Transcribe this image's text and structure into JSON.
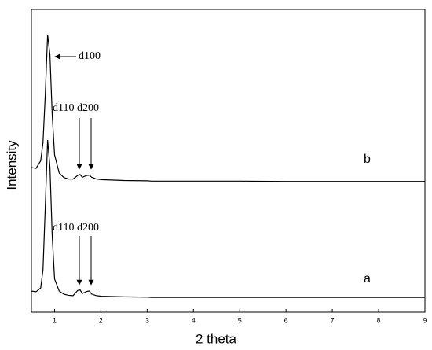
{
  "chart_data": {
    "type": "line",
    "x_label": "2 theta",
    "y_label": "Intensity",
    "x": [
      0.5,
      0.6,
      0.7,
      0.75,
      0.8,
      0.85,
      0.9,
      0.95,
      1.0,
      1.1,
      1.2,
      1.3,
      1.4,
      1.5,
      1.55,
      1.6,
      1.7,
      1.75,
      1.8,
      1.9,
      2.0,
      2.5,
      3.0,
      3.1,
      4,
      5,
      6,
      7,
      8,
      9
    ],
    "series": [
      {
        "name": "b",
        "color": "#000000",
        "values": [
          47.8,
          47.5,
          50,
          56,
          72,
          91.7,
          85,
          65,
          52,
          46,
          44.5,
          44,
          44,
          45.2,
          45.5,
          44.6,
          45.2,
          45.3,
          44.6,
          44,
          43.8,
          43.5,
          43.4,
          43.3,
          43.3,
          43.3,
          43.2,
          43.2,
          43.2,
          43.2
        ]
      },
      {
        "name": "a",
        "color": "#000000",
        "values": [
          7,
          6.8,
          8,
          14,
          35,
          56.9,
          48,
          25,
          11,
          7,
          6,
          5.6,
          5.5,
          7.2,
          7.4,
          6.2,
          6.9,
          7,
          6,
          5.5,
          5.3,
          5.1,
          5,
          4.9,
          4.9,
          4.9,
          4.9,
          4.9,
          4.9,
          4.9
        ]
      }
    ],
    "annotations": [
      "d100",
      "d110 d200",
      "d110 d200"
    ],
    "xlim": [
      0.5,
      9
    ],
    "xticks": [
      1,
      2,
      3,
      4,
      5,
      6,
      7,
      8,
      9
    ],
    "ylim": [
      0,
      100
    ]
  }
}
